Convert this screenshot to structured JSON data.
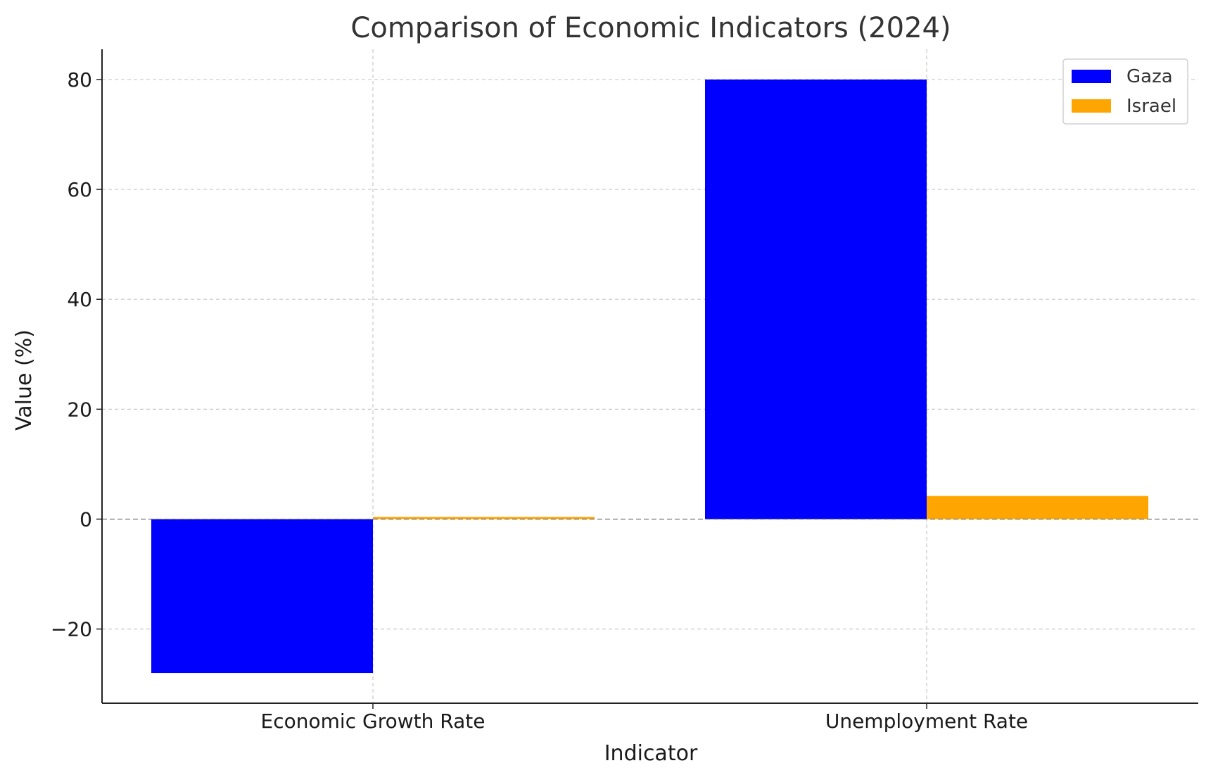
{
  "chart_data": {
    "type": "bar",
    "title": "Comparison of Economic Indicators (2024)",
    "xlabel": "Indicator",
    "ylabel": "Value (%)",
    "categories": [
      "Economic Growth Rate",
      "Unemployment Rate"
    ],
    "series": [
      {
        "name": "Gaza",
        "color": "#0000ff",
        "values": [
          -28,
          80
        ]
      },
      {
        "name": "Israel",
        "color": "#ffa500",
        "values": [
          0.4,
          4.2
        ]
      }
    ],
    "ylim": [
      -33.5,
      85.5
    ],
    "yticks": [
      -20,
      0,
      20,
      40,
      60,
      80
    ],
    "ytick_labels": [
      "−20",
      "0",
      "20",
      "40",
      "60",
      "80"
    ],
    "grid": true,
    "zero_line": true,
    "legend_position": "top-right"
  }
}
